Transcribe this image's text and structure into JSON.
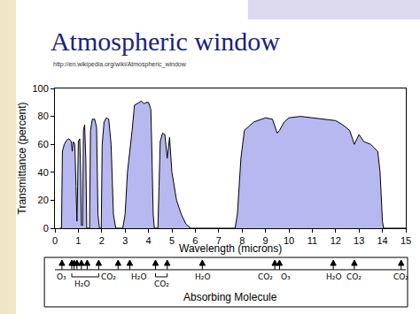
{
  "chart_data": {
    "type": "area",
    "title": "Atmospheric window",
    "subtitle": "http://en.wikipedia.org/wiki/Atmospheric_window",
    "x_label": "Wavelength (microns)",
    "y_label": "Transmittance (percent)",
    "color": "#b8b8f0",
    "x": [
      0.2,
      0.28,
      0.32,
      0.4,
      0.5,
      0.6,
      0.7,
      0.74,
      0.78,
      0.85,
      0.9,
      0.94,
      0.97,
      1.0,
      1.06,
      1.1,
      1.13,
      1.18,
      1.22,
      1.27,
      1.32,
      1.36,
      1.48,
      1.52,
      1.6,
      1.7,
      1.78,
      1.84,
      1.9,
      1.98,
      2.02,
      2.1,
      2.2,
      2.3,
      2.4,
      2.5,
      2.6,
      2.9,
      3.0,
      3.1,
      3.3,
      3.4,
      3.6,
      3.7,
      3.8,
      3.9,
      4.0,
      4.1,
      4.15,
      4.2,
      4.25,
      4.4,
      4.45,
      4.5,
      4.6,
      4.7,
      4.8,
      4.85,
      4.9,
      5.0,
      5.2,
      5.4,
      5.6,
      5.8,
      7.7,
      7.8,
      7.95,
      8.1,
      8.5,
      9.0,
      9.3,
      9.5,
      9.6,
      9.8,
      10.0,
      10.5,
      11.0,
      11.5,
      12.0,
      12.3,
      12.6,
      12.8,
      13.0,
      13.2,
      13.5,
      13.8,
      13.9,
      14.0,
      14.05,
      15
    ],
    "values": [
      0,
      0,
      55,
      60,
      63,
      64,
      62,
      55,
      62,
      60,
      30,
      5,
      30,
      62,
      64,
      40,
      2,
      2,
      70,
      74,
      50,
      0,
      0,
      70,
      78,
      78,
      72,
      10,
      0,
      0,
      60,
      76,
      79,
      78,
      60,
      10,
      0,
      0,
      10,
      40,
      70,
      88,
      90,
      91,
      89,
      90,
      90,
      85,
      50,
      10,
      0,
      0,
      30,
      62,
      68,
      67,
      50,
      60,
      65,
      40,
      20,
      10,
      3,
      0,
      0,
      10,
      50,
      70,
      76,
      79,
      78,
      68,
      70,
      76,
      79,
      80,
      79,
      78,
      77,
      74,
      70,
      60,
      67,
      62,
      60,
      55,
      40,
      5,
      0,
      0
    ],
    "xlim": [
      0,
      15
    ],
    "xticks": [
      0,
      1,
      2,
      3,
      4,
      5,
      6,
      7,
      8,
      9,
      10,
      11,
      12,
      13,
      14,
      15
    ],
    "ylim": [
      0,
      100
    ],
    "yticks": [
      0,
      20,
      40,
      60,
      80,
      100
    ],
    "grid": false,
    "absorbers_label": "Absorbing Molecule",
    "absorbers": [
      {
        "molecule": "O₃",
        "wavelengths": [
          0.3
        ]
      },
      {
        "molecule": "H₂O",
        "wavelengths": [
          0.72,
          0.82,
          0.94,
          1.13,
          1.38,
          1.87
        ]
      },
      {
        "molecule": "CO₂",
        "wavelengths": [
          2.7
        ]
      },
      {
        "molecule": "H₂O",
        "wavelengths": [
          3.2
        ]
      },
      {
        "molecule": "CO₂",
        "wavelengths": [
          4.3,
          4.8
        ]
      },
      {
        "molecule": "H₂O",
        "wavelengths": [
          6.3
        ]
      },
      {
        "molecule": "CO₂",
        "wavelengths": [
          9.4
        ]
      },
      {
        "molecule": "O₃",
        "wavelengths": [
          9.6
        ]
      },
      {
        "molecule": "H₂O",
        "wavelengths": [
          11.9
        ]
      },
      {
        "molecule": "CO₂",
        "wavelengths": [
          12.8
        ]
      },
      {
        "molecule": "CO₂",
        "wavelengths": [
          14.8
        ]
      }
    ]
  }
}
